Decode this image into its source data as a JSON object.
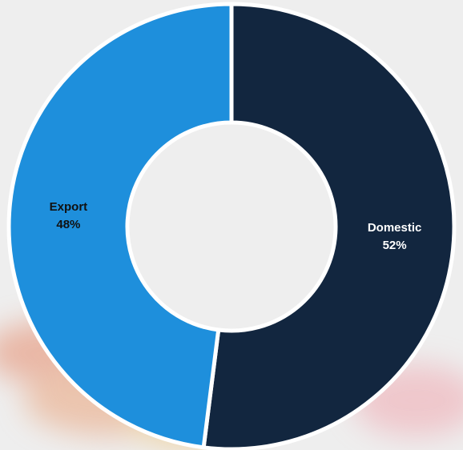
{
  "chart_data": {
    "type": "pie",
    "donut": true,
    "categories": [
      "Domestic",
      "Export"
    ],
    "values": [
      52,
      48
    ],
    "value_labels": [
      "52%",
      "48%"
    ],
    "colors": [
      "#12263f",
      "#1e8fdc"
    ],
    "label_colors": [
      "#ffffff",
      "#111111"
    ]
  }
}
